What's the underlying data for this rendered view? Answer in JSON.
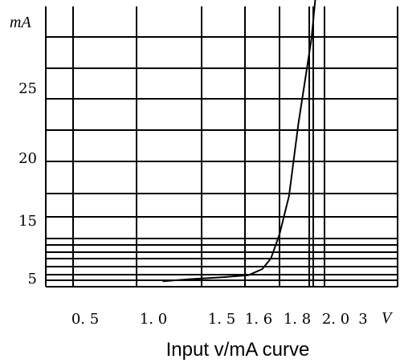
{
  "chart_data": {
    "type": "line",
    "title": "Input v/mA curve",
    "xlabel": "V",
    "ylabel": "mA",
    "x_ticks": [
      "0. 5",
      "1. 0",
      "1. 5",
      "1. 6",
      "1. 8",
      "2. 0",
      "3"
    ],
    "y_ticks": [
      "5",
      "15",
      "20",
      "25"
    ],
    "grid": true,
    "series": [
      {
        "points": [
          {
            "x": 1.2,
            "y": 2.0
          },
          {
            "x": 1.4,
            "y": 2.7
          },
          {
            "x": 1.55,
            "y": 3.5
          },
          {
            "x": 1.62,
            "y": 4.2
          },
          {
            "x": 1.7,
            "y": 5.7
          },
          {
            "x": 1.75,
            "y": 7.6
          },
          {
            "x": 1.8,
            "y": 11.9
          },
          {
            "x": 1.85,
            "y": 16.7
          },
          {
            "x": 1.9,
            "y": 22.5
          },
          {
            "x": 1.97,
            "y": 29.5
          },
          {
            "x": 2.0,
            "y": 34.5
          }
        ]
      }
    ]
  }
}
